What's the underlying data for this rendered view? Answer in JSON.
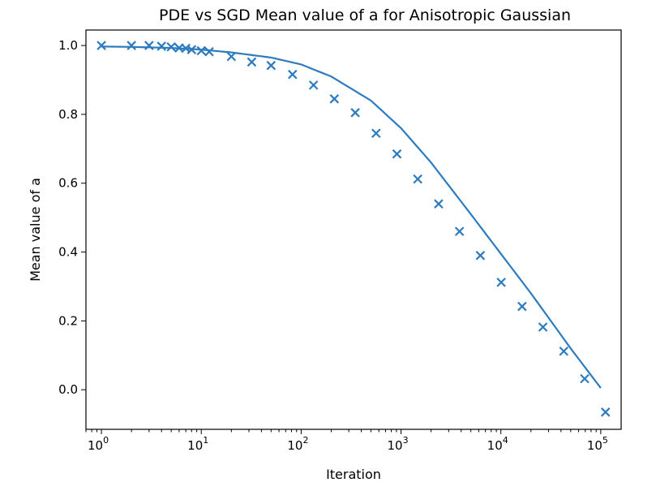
{
  "chart_data": {
    "type": "line",
    "title": "PDE vs SGD Mean value of a for Anisotropic Gaussian",
    "xlabel": "Iteration",
    "ylabel": "Mean value of a",
    "xscale": "log",
    "xlim": [
      0.7,
      160000
    ],
    "ylim": [
      -0.115,
      1.045
    ],
    "grid": false,
    "color": "#2d7bbf",
    "x_ticks": [
      {
        "base": "10",
        "exp": "0",
        "value": 1
      },
      {
        "base": "10",
        "exp": "1",
        "value": 10
      },
      {
        "base": "10",
        "exp": "2",
        "value": 100
      },
      {
        "base": "10",
        "exp": "3",
        "value": 1000
      },
      {
        "base": "10",
        "exp": "4",
        "value": 10000
      },
      {
        "base": "10",
        "exp": "5",
        "value": 100000
      }
    ],
    "y_ticks": [
      {
        "label": "0.0",
        "value": 0.0
      },
      {
        "label": "0.2",
        "value": 0.2
      },
      {
        "label": "0.4",
        "value": 0.4
      },
      {
        "label": "0.6",
        "value": 0.6
      },
      {
        "label": "0.8",
        "value": 0.8
      },
      {
        "label": "1.0",
        "value": 1.0
      }
    ],
    "series": [
      {
        "style": "line",
        "x": [
          1,
          2,
          5,
          10,
          20,
          50,
          100,
          200,
          500,
          1000,
          2000,
          5000,
          10000,
          20000,
          50000,
          100000
        ],
        "y": [
          0.997,
          0.996,
          0.993,
          0.988,
          0.98,
          0.965,
          0.945,
          0.91,
          0.84,
          0.76,
          0.66,
          0.51,
          0.395,
          0.28,
          0.12,
          0.005
        ]
      },
      {
        "style": "scatter",
        "marker": "x",
        "x": [
          1,
          2,
          3,
          4,
          5,
          6,
          7,
          8,
          10,
          12,
          20,
          32,
          50,
          82,
          133,
          215,
          348,
          563,
          910,
          1470,
          2380,
          3850,
          6230,
          10080,
          16300,
          26370,
          42650,
          69000,
          111600
        ],
        "y": [
          1.0,
          1.0,
          1.0,
          0.998,
          0.996,
          0.993,
          0.992,
          0.988,
          0.985,
          0.982,
          0.968,
          0.952,
          0.942,
          0.916,
          0.885,
          0.845,
          0.805,
          0.745,
          0.685,
          0.612,
          0.54,
          0.46,
          0.39,
          0.312,
          0.242,
          0.182,
          0.112,
          0.032,
          -0.065
        ]
      }
    ]
  }
}
